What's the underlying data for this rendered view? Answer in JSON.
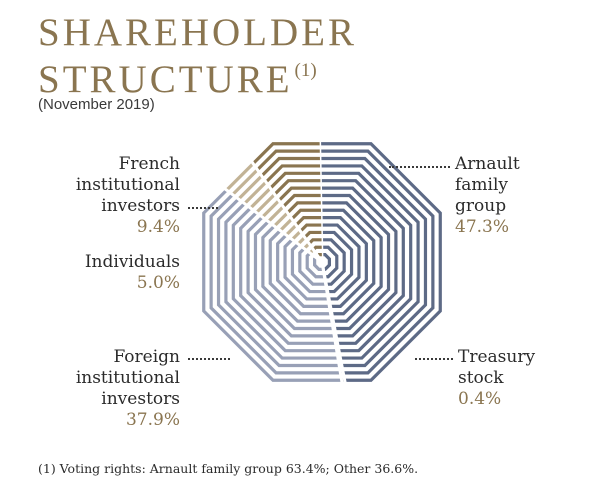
{
  "title": {
    "line1": "SHAREHOLDER",
    "line2": "STRUCTURE",
    "note_marker": "(1)"
  },
  "subtitle": "(November 2019)",
  "footnote": "(1) Voting rights: Arnault family group 63.4%; Other 36.6%.",
  "colors": {
    "arnault": "#5d6a86",
    "treasury": "#5d6a86",
    "foreign": "#98a0b6",
    "individuals": "#c2b396",
    "french": "#8a7550"
  },
  "chart_data": {
    "type": "pie",
    "title": "SHAREHOLDER STRUCTURE",
    "subtitle": "(November 2019)",
    "slices": [
      {
        "key": "arnault",
        "label": "Arnault family group",
        "value": 47.3,
        "value_label": "47.3%"
      },
      {
        "key": "treasury",
        "label": "Treasury stock",
        "value": 0.4,
        "value_label": "0.4%"
      },
      {
        "key": "foreign",
        "label": "Foreign institutional investors",
        "value": 37.9,
        "value_label": "37.9%"
      },
      {
        "key": "individuals",
        "label": "Individuals",
        "value": 5.0,
        "value_label": "5.0%"
      },
      {
        "key": "french",
        "label": "French institutional investors",
        "value": 9.4,
        "value_label": "9.4%"
      }
    ]
  },
  "labels": {
    "arnault": {
      "lines": [
        "Arnault",
        "family",
        "group"
      ],
      "pct": "47.3%"
    },
    "treasury": {
      "lines": [
        "Treasury",
        "stock"
      ],
      "pct": "0.4%"
    },
    "foreign": {
      "lines": [
        "Foreign",
        "institutional",
        "investors"
      ],
      "pct": "37.9%"
    },
    "individuals": {
      "lines": [
        "Individuals"
      ],
      "pct": "5.0%"
    },
    "french": {
      "lines": [
        "French",
        "institutional",
        "investors"
      ],
      "pct": "9.4%"
    }
  }
}
